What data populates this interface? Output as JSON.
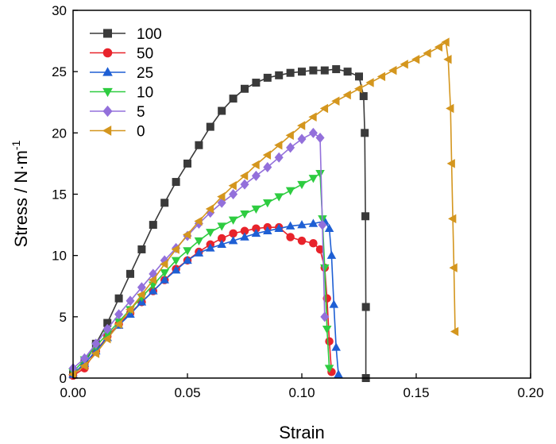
{
  "chart_data": {
    "type": "line",
    "title": "",
    "xlabel": "Strain",
    "ylabel_main": "Stress / N·m",
    "ylabel_sup": "-1",
    "xlim": [
      0,
      0.2
    ],
    "ylim": [
      0,
      30
    ],
    "xticks": [
      "0.00",
      "0.05",
      "0.10",
      "0.15",
      "0.20"
    ],
    "xtick_values": [
      0,
      0.05,
      0.1,
      0.15,
      0.2
    ],
    "yticks": [
      "0",
      "5",
      "10",
      "15",
      "20",
      "25",
      "30"
    ],
    "ytick_values": [
      0,
      5,
      10,
      15,
      20,
      25,
      30
    ],
    "grid": false,
    "legend_position": "top-left",
    "series": [
      {
        "name": "100",
        "color": "#3a3a3a",
        "marker": "square",
        "x": [
          0,
          0.005,
          0.01,
          0.015,
          0.02,
          0.025,
          0.03,
          0.035,
          0.04,
          0.045,
          0.05,
          0.055,
          0.06,
          0.065,
          0.07,
          0.075,
          0.08,
          0.085,
          0.09,
          0.095,
          0.1,
          0.105,
          0.11,
          0.115,
          0.12,
          0.125,
          0.127,
          0.1275,
          0.1278,
          0.128,
          0.128
        ],
        "y": [
          0.3,
          1.2,
          2.8,
          4.5,
          6.5,
          8.5,
          10.5,
          12.5,
          14.3,
          16.0,
          17.5,
          19.0,
          20.5,
          21.8,
          22.8,
          23.6,
          24.1,
          24.5,
          24.7,
          24.9,
          25.0,
          25.1,
          25.1,
          25.2,
          25.0,
          24.6,
          23.0,
          20.0,
          13.2,
          5.8,
          0
        ]
      },
      {
        "name": "50",
        "color": "#e8232b",
        "marker": "circle",
        "x": [
          0,
          0.005,
          0.01,
          0.015,
          0.02,
          0.025,
          0.03,
          0.035,
          0.04,
          0.045,
          0.05,
          0.055,
          0.06,
          0.065,
          0.07,
          0.075,
          0.08,
          0.085,
          0.09,
          0.095,
          0.1,
          0.105,
          0.108,
          0.11,
          0.111,
          0.112,
          0.113
        ],
        "y": [
          0.2,
          0.8,
          2.2,
          3.4,
          4.4,
          5.3,
          6.2,
          7.1,
          8.0,
          8.9,
          9.6,
          10.3,
          10.9,
          11.4,
          11.8,
          12.0,
          12.2,
          12.3,
          12.3,
          11.5,
          11.2,
          11.0,
          10.5,
          9.0,
          6.5,
          3.0,
          0.5
        ]
      },
      {
        "name": "25",
        "color": "#1e5fd4",
        "marker": "triangle-up",
        "x": [
          0,
          0.005,
          0.01,
          0.015,
          0.02,
          0.025,
          0.03,
          0.035,
          0.04,
          0.045,
          0.05,
          0.055,
          0.06,
          0.065,
          0.07,
          0.075,
          0.08,
          0.085,
          0.09,
          0.095,
          0.1,
          0.105,
          0.11,
          0.112,
          0.113,
          0.114,
          0.115,
          0.116
        ],
        "y": [
          0.3,
          1.2,
          2.2,
          3.3,
          4.3,
          5.2,
          6.2,
          7.1,
          8.0,
          8.8,
          9.6,
          10.2,
          10.6,
          10.9,
          11.2,
          11.5,
          11.8,
          12.0,
          12.2,
          12.4,
          12.5,
          12.6,
          12.8,
          12.2,
          10.0,
          6.0,
          2.5,
          0.3
        ]
      },
      {
        "name": "10",
        "color": "#2ecc40",
        "marker": "triangle-down",
        "x": [
          0,
          0.005,
          0.01,
          0.015,
          0.02,
          0.025,
          0.03,
          0.035,
          0.04,
          0.045,
          0.05,
          0.055,
          0.06,
          0.065,
          0.07,
          0.075,
          0.08,
          0.085,
          0.09,
          0.095,
          0.1,
          0.105,
          0.108,
          0.109,
          0.11,
          0.111,
          0.112
        ],
        "y": [
          0.5,
          1.5,
          2.6,
          3.6,
          4.6,
          5.6,
          6.6,
          7.6,
          8.6,
          9.6,
          10.4,
          11.2,
          11.9,
          12.4,
          12.9,
          13.4,
          13.8,
          14.3,
          14.8,
          15.3,
          15.8,
          16.3,
          16.7,
          13.0,
          9.0,
          4.0,
          0.8
        ]
      },
      {
        "name": "5",
        "color": "#9370db",
        "marker": "diamond",
        "x": [
          0,
          0.005,
          0.01,
          0.015,
          0.02,
          0.025,
          0.03,
          0.035,
          0.04,
          0.045,
          0.05,
          0.055,
          0.06,
          0.065,
          0.07,
          0.075,
          0.08,
          0.085,
          0.09,
          0.095,
          0.1,
          0.105,
          0.108,
          0.109,
          0.11
        ],
        "y": [
          0.8,
          1.6,
          2.8,
          4.0,
          5.2,
          6.3,
          7.4,
          8.5,
          9.6,
          10.6,
          11.6,
          12.6,
          13.5,
          14.3,
          15.0,
          15.8,
          16.5,
          17.2,
          18.0,
          18.8,
          19.5,
          20.0,
          19.6,
          12.5,
          5.0
        ]
      },
      {
        "name": "0",
        "color": "#d4961e",
        "marker": "triangle-left",
        "x": [
          0,
          0.005,
          0.01,
          0.015,
          0.02,
          0.025,
          0.03,
          0.035,
          0.04,
          0.045,
          0.05,
          0.055,
          0.06,
          0.065,
          0.07,
          0.075,
          0.08,
          0.085,
          0.09,
          0.095,
          0.1,
          0.105,
          0.11,
          0.115,
          0.12,
          0.125,
          0.13,
          0.135,
          0.14,
          0.145,
          0.15,
          0.155,
          0.16,
          0.163,
          0.164,
          0.165,
          0.1655,
          0.166,
          0.1665,
          0.167
        ],
        "y": [
          0.3,
          1.0,
          2.0,
          3.2,
          4.4,
          5.6,
          6.8,
          8.0,
          9.3,
          10.5,
          11.7,
          12.8,
          13.8,
          14.8,
          15.7,
          16.5,
          17.4,
          18.2,
          19.0,
          19.8,
          20.6,
          21.3,
          22.0,
          22.6,
          23.1,
          23.6,
          24.1,
          24.6,
          25.1,
          25.6,
          26.0,
          26.5,
          27.0,
          27.4,
          26.0,
          22.0,
          17.5,
          13.0,
          9.0,
          3.8
        ]
      }
    ]
  }
}
